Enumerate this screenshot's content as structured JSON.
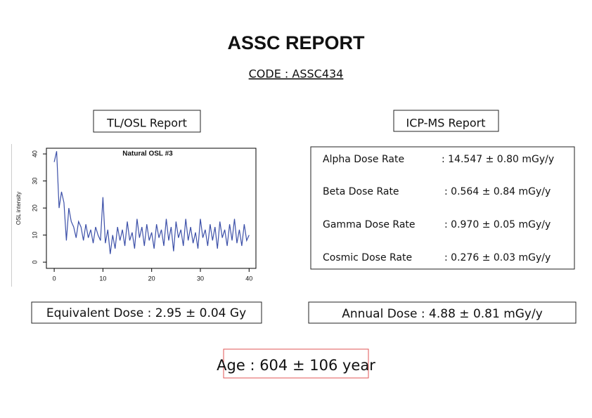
{
  "title": "ASSC REPORT",
  "code": "CODE : ASSC434",
  "tl_osl": {
    "heading": "TL/OSL Report",
    "equivalent_dose": "Equivalent Dose : 2.95 ± 0.04 Gy"
  },
  "icp_ms": {
    "heading": "ICP-MS Report",
    "rows": [
      [
        "Alpha Dose Rate",
        ": 14.547 ± 0.80 mGy/y"
      ],
      [
        "Beta Dose Rate",
        ": 0.564 ± 0.84 mGy/y"
      ],
      [
        "Gamma Dose Rate",
        ": 0.970 ± 0.05 mGy/y"
      ],
      [
        "Cosmic Dose Rate",
        ": 0.276 ± 0.03 mGy/y"
      ]
    ],
    "annual_dose": "Annual Dose : 4.88 ± 0.81 mGy/y"
  },
  "age": "Age : 604 ± 106 year",
  "chart_data": {
    "type": "line",
    "title": "Natural OSL #3",
    "y_label": "OSL intensity",
    "color": "#3b4fa8",
    "x": [
      0,
      0.5,
      1,
      1.5,
      2,
      2.5,
      3,
      3.5,
      4,
      4.5,
      5,
      5.5,
      6,
      6.5,
      7,
      7.5,
      8,
      8.5,
      9,
      9.5,
      10,
      10.5,
      11,
      11.5,
      12,
      12.5,
      13,
      13.5,
      14,
      14.5,
      15,
      15.5,
      16,
      16.5,
      17,
      17.5,
      18,
      18.5,
      19,
      19.5,
      20,
      20.5,
      21,
      21.5,
      22,
      22.5,
      23,
      23.5,
      24,
      24.5,
      25,
      25.5,
      26,
      26.5,
      27,
      27.5,
      28,
      28.5,
      29,
      29.5,
      30,
      30.5,
      31,
      31.5,
      32,
      32.5,
      33,
      33.5,
      34,
      34.5,
      35,
      35.5,
      36,
      36.5,
      37,
      37.5,
      38,
      38.5,
      39,
      39.5,
      40
    ],
    "values": [
      37,
      41,
      20,
      26,
      22,
      8,
      20,
      15,
      13,
      9,
      15,
      13,
      8,
      14,
      9,
      12,
      7,
      13,
      10,
      8,
      24,
      7,
      12,
      3,
      10,
      5,
      13,
      8,
      12,
      6,
      15,
      8,
      11,
      5,
      16,
      9,
      13,
      6,
      14,
      8,
      11,
      5,
      14,
      9,
      12,
      6,
      16,
      8,
      13,
      4,
      15,
      9,
      12,
      6,
      16,
      8,
      13,
      7,
      11,
      5,
      16,
      9,
      12,
      6,
      14,
      8,
      13,
      5,
      15,
      9,
      12,
      6,
      14,
      8,
      16,
      7,
      12,
      6,
      14,
      8,
      10
    ],
    "xlim": [
      -1.6,
      41.4
    ],
    "ylim": [
      -2.3,
      42.1
    ],
    "xticks": [
      0,
      10,
      20,
      30,
      40
    ],
    "yticks": [
      0,
      10,
      20,
      30,
      40
    ]
  }
}
